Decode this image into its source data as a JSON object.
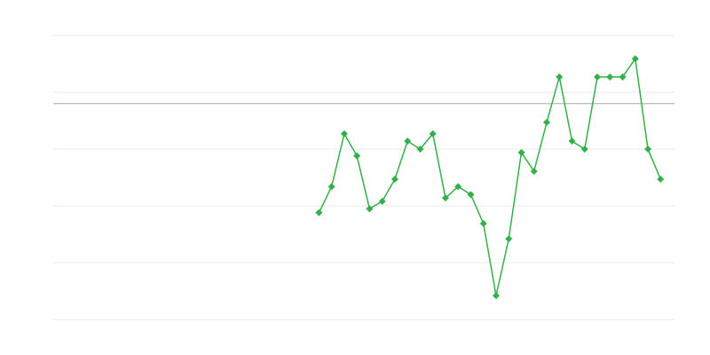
{
  "chart_data": {
    "type": "line",
    "title": "",
    "xlabel": "",
    "ylabel": "",
    "xlim": [
      0,
      49
    ],
    "ylim": [
      0,
      5
    ],
    "gridlines_y": [
      0,
      1,
      2,
      3,
      4,
      5
    ],
    "grid": true,
    "reference_line_y": 3.8,
    "legend": "none",
    "series": [
      {
        "color": "#34b04a",
        "marker": "diamond",
        "x": [
          21,
          22,
          23,
          24,
          25,
          26,
          27,
          28,
          29,
          30,
          31,
          32,
          33,
          34,
          35,
          36,
          37,
          38,
          39,
          40,
          41,
          42,
          43,
          44,
          45,
          46,
          47,
          48
        ],
        "values": [
          1.88,
          2.34,
          3.27,
          2.88,
          1.95,
          2.08,
          2.47,
          3.14,
          3.0,
          3.27,
          2.14,
          2.34,
          2.2,
          1.69,
          0.42,
          1.42,
          2.94,
          2.61,
          3.47,
          4.27,
          3.14,
          3.0,
          4.27,
          4.27,
          4.27,
          4.59,
          3.0,
          2.47
        ]
      }
    ]
  },
  "colors": {
    "grid": "#ebebeb",
    "reference_line": "#aaaaaa",
    "series": "#34b04a"
  }
}
